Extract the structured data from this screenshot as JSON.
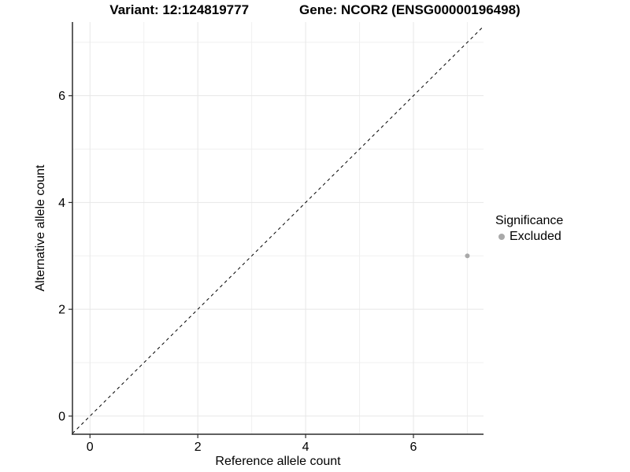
{
  "chart_data": {
    "type": "scatter",
    "title_left": "Variant: 12:124819777",
    "title_right": "Gene: NCOR2 (ENSG00000196498)",
    "xlabel": "Reference allele count",
    "ylabel": "Alternative allele count",
    "x_ticks": [
      0,
      2,
      4,
      6
    ],
    "y_ticks": [
      0,
      2,
      4,
      6
    ],
    "x_minor": [
      1,
      3,
      5,
      7
    ],
    "y_minor": [
      1,
      3,
      5,
      7
    ],
    "xlim": [
      -0.325,
      7.3
    ],
    "ylim": [
      -0.34,
      7.38
    ],
    "grid": true,
    "abline": {
      "slope": 1,
      "intercept": 0,
      "style": "dashed"
    },
    "points": [
      {
        "x": 7,
        "y": 3,
        "series": "Excluded"
      }
    ],
    "legend": {
      "title": "Significance",
      "position": "right",
      "entries": [
        {
          "label": "Excluded",
          "color": "#a9a9a9"
        }
      ]
    }
  },
  "colors": {
    "point": "#a9a9a9",
    "axis_line": "#2b2b2b",
    "grid_major": "#e7e7e7",
    "grid_minor": "#f0f0f0",
    "diagonal": "#000000",
    "text": "#000000"
  }
}
